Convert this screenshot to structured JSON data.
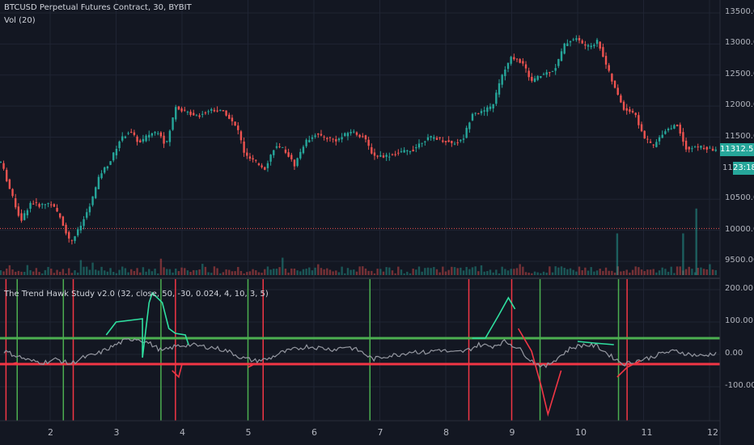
{
  "main_legend": {
    "title": "BTCUSD Perpetual Futures Contract, 30, BYBIT",
    "volume": "Vol (20)"
  },
  "indicator_legend": {
    "title": "The Trend Hawk Study v2.0 (32, close, 50, -30, 0.024, 4, 10, 3, 5)"
  },
  "price_badges": {
    "last_price": "11312.50",
    "countdown": "23:18",
    "partial_tick": "11"
  },
  "colors": {
    "background": "#131722",
    "up": "#26a69a",
    "down": "#ef5350",
    "trend_up": "#4caf50",
    "trend_down": "#f23645",
    "oscillator": "#9598a1"
  },
  "chart_data": [
    {
      "type": "candlestick",
      "y_axis_ticks": [
        "13500.00",
        "13000.00",
        "12500.00",
        "12000.00",
        "11500.00",
        "10500.00",
        "10000.00",
        "9500.00"
      ],
      "ylim": [
        9300,
        13600
      ],
      "x_axis_ticks": [
        "2",
        "3",
        "4",
        "5",
        "6",
        "7",
        "8",
        "9",
        "10",
        "11",
        "12"
      ],
      "reference_line": 10030,
      "close_path": [
        [
          1.3,
          11100
        ],
        [
          1.45,
          10600
        ],
        [
          1.6,
          10150
        ],
        [
          1.75,
          10450
        ],
        [
          1.9,
          10400
        ],
        [
          2.05,
          10450
        ],
        [
          2.2,
          10200
        ],
        [
          2.35,
          9800
        ],
        [
          2.5,
          10050
        ],
        [
          2.65,
          10400
        ],
        [
          2.8,
          10900
        ],
        [
          2.95,
          11100
        ],
        [
          3.1,
          11450
        ],
        [
          3.25,
          11600
        ],
        [
          3.4,
          11400
        ],
        [
          3.55,
          11550
        ],
        [
          3.7,
          11600
        ],
        [
          3.8,
          11350
        ],
        [
          3.95,
          12000
        ],
        [
          4.1,
          11900
        ],
        [
          4.3,
          11850
        ],
        [
          4.5,
          11950
        ],
        [
          4.7,
          11900
        ],
        [
          4.9,
          11600
        ],
        [
          5.0,
          11200
        ],
        [
          5.15,
          11100
        ],
        [
          5.3,
          11000
        ],
        [
          5.45,
          11350
        ],
        [
          5.6,
          11300
        ],
        [
          5.75,
          11050
        ],
        [
          5.9,
          11400
        ],
        [
          6.05,
          11550
        ],
        [
          6.2,
          11500
        ],
        [
          6.4,
          11450
        ],
        [
          6.6,
          11600
        ],
        [
          6.8,
          11500
        ],
        [
          6.95,
          11200
        ],
        [
          7.15,
          11200
        ],
        [
          7.35,
          11250
        ],
        [
          7.55,
          11300
        ],
        [
          7.7,
          11450
        ],
        [
          7.85,
          11500
        ],
        [
          8.0,
          11450
        ],
        [
          8.15,
          11400
        ],
        [
          8.3,
          11450
        ],
        [
          8.45,
          11900
        ],
        [
          8.6,
          11900
        ],
        [
          8.75,
          12000
        ],
        [
          8.9,
          12500
        ],
        [
          9.05,
          12800
        ],
        [
          9.2,
          12700
        ],
        [
          9.35,
          12400
        ],
        [
          9.5,
          12500
        ],
        [
          9.7,
          12600
        ],
        [
          9.85,
          13000
        ],
        [
          10.0,
          13100
        ],
        [
          10.2,
          12950
        ],
        [
          10.35,
          13050
        ],
        [
          10.5,
          12600
        ],
        [
          10.6,
          12300
        ],
        [
          10.75,
          11950
        ],
        [
          10.9,
          11900
        ],
        [
          11.05,
          11500
        ],
        [
          11.2,
          11350
        ],
        [
          11.35,
          11600
        ],
        [
          11.55,
          11700
        ],
        [
          11.7,
          11300
        ],
        [
          11.9,
          11350
        ],
        [
          12.05,
          11300
        ]
      ],
      "volume_spikes": [
        [
          11.8,
          10350
        ],
        [
          11.6,
          9950
        ],
        [
          10.6,
          9950
        ]
      ]
    },
    {
      "type": "line",
      "y_axis_ticks": [
        "200.00",
        "100.00",
        "0.00",
        "-100.00"
      ],
      "ylim": [
        -190,
        225
      ],
      "upper_level": 50,
      "lower_level": -30,
      "trend_line_up_segments": [
        [
          [
            2.85,
            60
          ],
          [
            3.0,
            100
          ],
          [
            3.4,
            110
          ],
          [
            3.4,
            -10
          ],
          [
            3.5,
            160
          ],
          [
            3.55,
            190
          ],
          [
            3.7,
            160
          ],
          [
            3.8,
            80
          ],
          [
            3.9,
            65
          ],
          [
            4.05,
            60
          ],
          [
            4.1,
            30
          ]
        ],
        [
          [
            8.4,
            50
          ],
          [
            8.6,
            50
          ],
          [
            8.8,
            120
          ],
          [
            8.95,
            175
          ],
          [
            9.05,
            140
          ]
        ],
        [
          [
            10.0,
            40
          ],
          [
            10.25,
            35
          ],
          [
            10.55,
            30
          ]
        ]
      ],
      "trend_line_down_segments": [
        [
          [
            1.4,
            -30
          ],
          [
            1.5,
            -25
          ]
        ],
        [
          [
            3.85,
            -50
          ],
          [
            3.95,
            -70
          ],
          [
            4.0,
            -30
          ]
        ],
        [
          [
            9.1,
            80
          ],
          [
            9.3,
            10
          ],
          [
            9.45,
            -100
          ],
          [
            9.55,
            -185
          ],
          [
            9.75,
            -50
          ]
        ],
        [
          [
            10.6,
            -70
          ],
          [
            10.75,
            -40
          ],
          [
            10.95,
            -20
          ]
        ],
        [
          [
            5.0,
            -40
          ],
          [
            5.1,
            -30
          ]
        ]
      ],
      "oscillator_path": [
        [
          1.3,
          10
        ],
        [
          1.5,
          -5
        ],
        [
          1.7,
          -20
        ],
        [
          1.9,
          -25
        ],
        [
          2.1,
          -15
        ],
        [
          2.3,
          -30
        ],
        [
          2.5,
          -10
        ],
        [
          2.7,
          0
        ],
        [
          2.9,
          20
        ],
        [
          3.1,
          40
        ],
        [
          3.3,
          50
        ],
        [
          3.5,
          35
        ],
        [
          3.7,
          10
        ],
        [
          3.9,
          25
        ],
        [
          4.1,
          30
        ],
        [
          4.3,
          25
        ],
        [
          4.5,
          20
        ],
        [
          4.7,
          10
        ],
        [
          4.9,
          -10
        ],
        [
          5.1,
          -20
        ],
        [
          5.3,
          -15
        ],
        [
          5.5,
          5
        ],
        [
          5.7,
          15
        ],
        [
          5.9,
          25
        ],
        [
          6.1,
          20
        ],
        [
          6.3,
          15
        ],
        [
          6.5,
          25
        ],
        [
          6.7,
          10
        ],
        [
          6.9,
          -15
        ],
        [
          7.1,
          -5
        ],
        [
          7.3,
          0
        ],
        [
          7.5,
          10
        ],
        [
          7.7,
          5
        ],
        [
          7.9,
          15
        ],
        [
          8.1,
          5
        ],
        [
          8.3,
          10
        ],
        [
          8.5,
          30
        ],
        [
          8.7,
          25
        ],
        [
          8.9,
          40
        ],
        [
          9.1,
          20
        ],
        [
          9.3,
          -20
        ],
        [
          9.5,
          -40
        ],
        [
          9.7,
          -10
        ],
        [
          9.9,
          20
        ],
        [
          10.1,
          30
        ],
        [
          10.3,
          25
        ],
        [
          10.5,
          -5
        ],
        [
          10.7,
          -30
        ],
        [
          10.9,
          -20
        ],
        [
          11.1,
          -10
        ],
        [
          11.3,
          5
        ],
        [
          11.5,
          10
        ],
        [
          11.7,
          0
        ],
        [
          11.9,
          -5
        ],
        [
          12.1,
          5
        ]
      ],
      "buy_signals_x": [
        1.5,
        2.2,
        3.68,
        5.0,
        6.85,
        9.43,
        10.62
      ],
      "sell_signals_x": [
        1.33,
        2.35,
        3.9,
        5.23,
        8.35,
        9.0,
        10.75
      ]
    }
  ]
}
